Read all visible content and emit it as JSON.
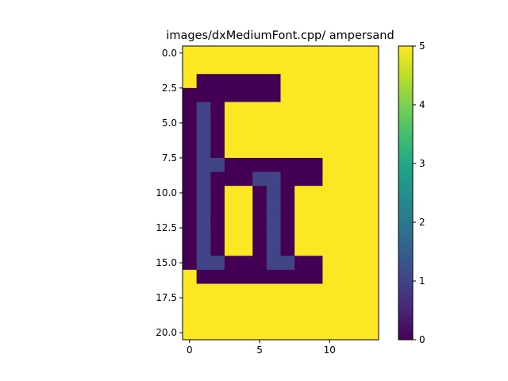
{
  "chart_data": {
    "type": "heatmap",
    "title": "images/dxMediumFont.cpp/ ampersand",
    "xlabel": "",
    "ylabel": "",
    "colormap": "viridis",
    "colorbar": {
      "min": 0,
      "max": 5,
      "ticks": [
        "0",
        "1",
        "2",
        "3",
        "4",
        "5"
      ]
    },
    "x_ticks": [
      "0",
      "5",
      "10"
    ],
    "y_ticks": [
      "0.0",
      "2.5",
      "5.0",
      "7.5",
      "10.0",
      "12.5",
      "15.0",
      "17.5",
      "20.0"
    ],
    "xlim": [
      -0.5,
      13.5
    ],
    "ylim": [
      20.5,
      -0.5
    ],
    "grid": false,
    "values": [
      [
        5,
        5,
        5,
        5,
        5,
        5,
        5,
        5,
        5,
        5,
        5,
        5,
        5,
        5
      ],
      [
        5,
        5,
        5,
        5,
        5,
        5,
        5,
        5,
        5,
        5,
        5,
        5,
        5,
        5
      ],
      [
        5,
        0,
        0,
        0,
        0,
        0,
        0,
        5,
        5,
        5,
        5,
        5,
        5,
        5
      ],
      [
        0,
        0,
        0,
        0,
        0,
        0,
        0,
        5,
        5,
        5,
        5,
        5,
        5,
        5
      ],
      [
        0,
        1,
        0,
        5,
        5,
        5,
        5,
        5,
        5,
        5,
        5,
        5,
        5,
        5
      ],
      [
        0,
        1,
        0,
        5,
        5,
        5,
        5,
        5,
        5,
        5,
        5,
        5,
        5,
        5
      ],
      [
        0,
        1,
        0,
        5,
        5,
        5,
        5,
        5,
        5,
        5,
        5,
        5,
        5,
        5
      ],
      [
        0,
        1,
        0,
        5,
        5,
        5,
        5,
        5,
        5,
        5,
        5,
        5,
        5,
        5
      ],
      [
        0,
        1,
        1,
        0,
        0,
        0,
        0,
        0,
        0,
        0,
        5,
        5,
        5,
        5
      ],
      [
        0,
        1,
        0,
        0,
        0,
        1,
        1,
        0,
        0,
        0,
        5,
        5,
        5,
        5
      ],
      [
        0,
        1,
        0,
        5,
        5,
        0,
        1,
        0,
        5,
        5,
        5,
        5,
        5,
        5
      ],
      [
        0,
        1,
        0,
        5,
        5,
        0,
        1,
        0,
        5,
        5,
        5,
        5,
        5,
        5
      ],
      [
        0,
        1,
        0,
        5,
        5,
        0,
        1,
        0,
        5,
        5,
        5,
        5,
        5,
        5
      ],
      [
        0,
        1,
        0,
        5,
        5,
        0,
        1,
        0,
        5,
        5,
        5,
        5,
        5,
        5
      ],
      [
        0,
        1,
        0,
        5,
        5,
        0,
        1,
        0,
        5,
        5,
        5,
        5,
        5,
        5
      ],
      [
        0,
        1,
        1,
        0,
        0,
        0,
        1,
        1,
        0,
        0,
        5,
        5,
        5,
        5
      ],
      [
        5,
        0,
        0,
        0,
        0,
        0,
        0,
        0,
        0,
        0,
        5,
        5,
        5,
        5
      ],
      [
        5,
        5,
        5,
        5,
        5,
        5,
        5,
        5,
        5,
        5,
        5,
        5,
        5,
        5
      ],
      [
        5,
        5,
        5,
        5,
        5,
        5,
        5,
        5,
        5,
        5,
        5,
        5,
        5,
        5
      ],
      [
        5,
        5,
        5,
        5,
        5,
        5,
        5,
        5,
        5,
        5,
        5,
        5,
        5,
        5
      ],
      [
        5,
        5,
        5,
        5,
        5,
        5,
        5,
        5,
        5,
        5,
        5,
        5,
        5,
        5
      ]
    ]
  }
}
